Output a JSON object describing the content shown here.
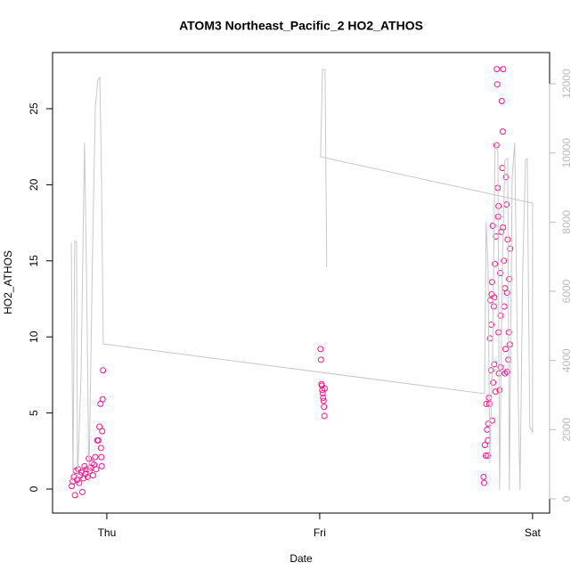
{
  "chart_data": {
    "type": "scatter",
    "title": "ATOM3 Northeast_Pacific_2 HO2_ATHOS",
    "x_label": "Date",
    "y_label": "HO2_ATHOS",
    "xlim": [
      -0.255,
      2.08
    ],
    "xticks": [
      {
        "value": 0,
        "label": "Thu"
      },
      {
        "value": 1,
        "label": "Fri"
      },
      {
        "value": 2,
        "label": "Sat"
      }
    ],
    "ylim": [
      -1.58,
      28.69
    ],
    "yticks": [
      0,
      5,
      10,
      15,
      20,
      25
    ],
    "y2lim": [
      -412,
      12902
    ],
    "y2ticks": [
      0,
      2000,
      4000,
      6000,
      8000,
      10000,
      12000
    ],
    "series": [
      {
        "type": "scatter",
        "color": "#ff1493",
        "x": [
          -0.165,
          -0.16,
          -0.155,
          -0.15,
          -0.145,
          -0.14,
          -0.135,
          -0.13,
          -0.125,
          -0.12,
          -0.115,
          -0.11,
          -0.105,
          -0.1,
          -0.095,
          -0.09,
          -0.085,
          -0.08,
          -0.075,
          -0.07,
          -0.065,
          -0.06,
          -0.055,
          -0.05,
          -0.045,
          -0.04,
          -0.035,
          -0.03,
          -0.028,
          -0.026,
          -0.024,
          -0.022,
          -0.02,
          -0.018,
          1.004,
          1.006,
          1.008,
          1.01,
          1.012,
          1.014,
          1.016,
          1.018,
          1.02,
          1.022,
          1.024,
          1.77,
          1.772,
          1.776,
          1.78,
          1.783,
          1.786,
          1.79,
          1.792,
          1.795,
          1.797,
          1.8,
          1.802,
          1.805,
          1.808,
          1.81,
          1.813,
          1.815,
          1.818,
          1.82,
          1.823,
          1.826,
          1.828,
          1.83,
          1.832,
          1.834,
          1.836,
          1.838,
          1.84,
          1.842,
          1.845,
          1.848,
          1.85,
          1.853,
          1.855,
          1.858,
          1.86,
          1.862,
          1.865,
          1.867,
          1.87,
          1.873,
          1.875,
          1.878,
          1.88,
          1.883,
          1.886,
          1.888,
          1.89,
          1.893,
          1.895,
          1.87,
          1.85,
          1.82,
          1.81,
          1.84,
          1.79,
          1.806,
          1.861,
          1.88
        ],
        "values": [
          0.2,
          0.5,
          0.8,
          -0.4,
          1.2,
          0.6,
          1.3,
          0.4,
          0.9,
          1.1,
          -0.2,
          0.7,
          1.5,
          1.0,
          1.3,
          0.8,
          2.0,
          1.2,
          1.4,
          1.7,
          0.9,
          1.6,
          2.1,
          1.3,
          3.2,
          3.2,
          4.1,
          5.6,
          2.7,
          2.1,
          1.5,
          3.8,
          5.9,
          7.8,
          9.2,
          8.5,
          6.9,
          6.8,
          6.5,
          6.3,
          6.0,
          5.8,
          5.4,
          4.8,
          6.6,
          0.8,
          0.4,
          2.9,
          2.2,
          5.6,
          3.9,
          2.2,
          4.3,
          6.0,
          5.6,
          9.9,
          12.4,
          7.8,
          12.8,
          13.6,
          17.3,
          7.0,
          12.0,
          8.2,
          14.8,
          6.4,
          16.6,
          22.6,
          27.6,
          26.6,
          19.8,
          17.9,
          10.3,
          7.6,
          6.5,
          14.2,
          11.4,
          16.9,
          25.5,
          21.1,
          23.5,
          27.6,
          15.0,
          12.0,
          13.2,
          9.2,
          20.5,
          18.7,
          12.9,
          16.4,
          8.5,
          10.3,
          13.8,
          9.5,
          15.8,
          7.6,
          8.0,
          12.6,
          4.5,
          18.6,
          3.2,
          10.8,
          17.2,
          7.7
        ]
      },
      {
        "type": "line",
        "axis": "y2",
        "color": "#c8c8c8",
        "x": [
          -0.167,
          -0.159,
          -0.151,
          -0.142,
          -0.138,
          -0.121,
          -0.105,
          -0.096,
          -0.084,
          -0.067,
          -0.054,
          -0.042,
          -0.033,
          -0.025,
          -0.017,
          1.774,
          1.782,
          1.791,
          1.799,
          1.812,
          1.824,
          1.837,
          1.845,
          1.858,
          1.87,
          1.883,
          1.891,
          1.904,
          1.916,
          1.929,
          1.941,
          1.954,
          1.967,
          1.975,
          1.987,
          2.0,
          2.0,
          1.004,
          1.013,
          1.025,
          1.033
        ],
        "values": [
          7417,
          515,
          7468,
          7417,
          515,
          3605,
          10301,
          6696,
          515,
          7211,
          11331,
          12104,
          12181,
          9271,
          4481,
          3039,
          7983,
          6696,
          1030,
          4120,
          10301,
          10044,
          258,
          6696,
          9786,
          9838,
          258,
          9271,
          10301,
          4120,
          258,
          6696,
          9786,
          9838,
          2060,
          1931,
          8550,
          9889,
          12413,
          12413,
          6696
        ]
      }
    ]
  }
}
